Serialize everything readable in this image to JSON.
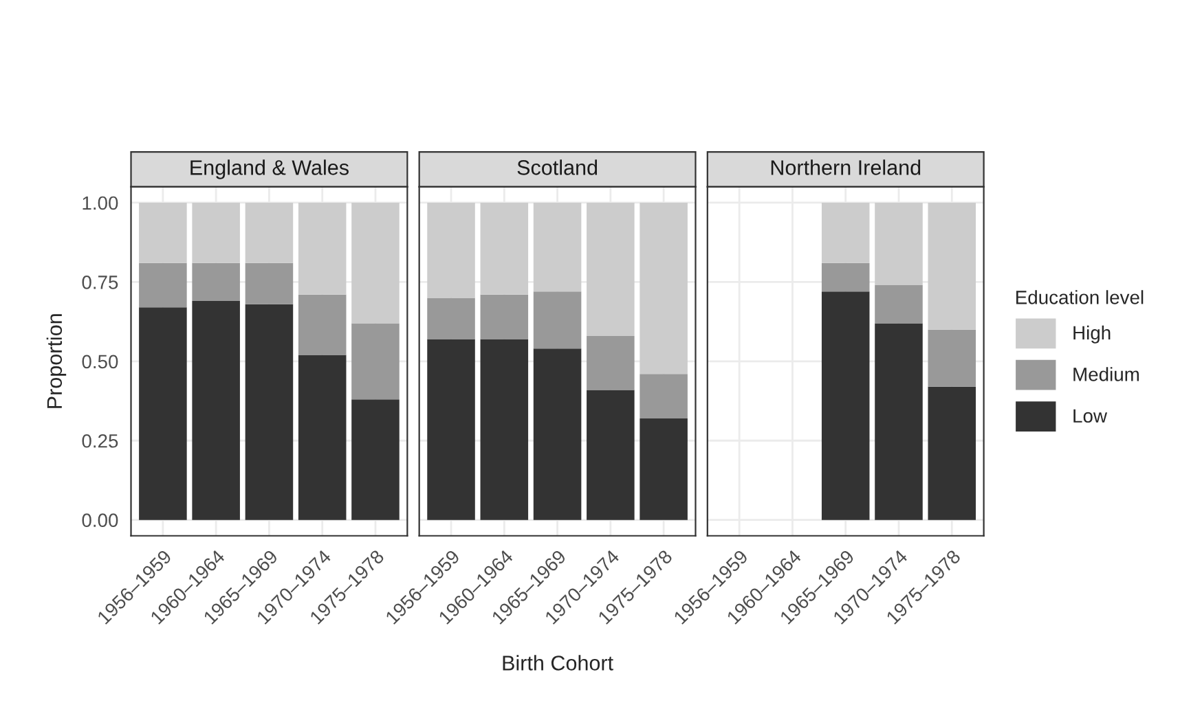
{
  "chart_data": [
    {
      "type": "bar",
      "title": "England & Wales",
      "ylabel": "Proportion",
      "stacked": true,
      "grid": true,
      "legend": false,
      "categories": [
        "1956–1959",
        "1960–1964",
        "1965–1969",
        "1970–1974",
        "1975–1978"
      ],
      "ylim": [
        -0.05,
        1.05
      ],
      "yticks": [
        {
          "value": 0,
          "label": "0.00"
        },
        {
          "value": 0.25,
          "label": "0.25"
        },
        {
          "value": 0.5,
          "label": "0.50"
        },
        {
          "value": 0.75,
          "label": "0.75"
        },
        {
          "value": 1,
          "label": "1.00"
        }
      ],
      "series": [
        {
          "color": "#333333",
          "values": [
            0.67,
            0.69,
            0.68,
            0.52,
            0.38
          ]
        },
        {
          "color": "#999999",
          "values": [
            0.14,
            0.12,
            0.13,
            0.19,
            0.24
          ]
        },
        {
          "color": "#cccccc",
          "values": [
            0.19,
            0.19,
            0.19,
            0.29,
            0.38
          ]
        }
      ]
    },
    {
      "type": "bar",
      "title": "Scotland",
      "xlabel": "Birth Cohort",
      "stacked": true,
      "grid": true,
      "legend": false,
      "tick_labels": "x",
      "categories": [
        "1956–1959",
        "1960–1964",
        "1965–1969",
        "1970–1974",
        "1975–1978"
      ],
      "ylim": [
        -0.05,
        1.05
      ],
      "yticks": [
        {
          "value": 0,
          "label": null
        },
        {
          "value": 0.25,
          "label": null
        },
        {
          "value": 0.5,
          "label": null
        },
        {
          "value": 0.75,
          "label": null
        },
        {
          "value": 1,
          "label": null
        }
      ],
      "series": [
        {
          "color": "#333333",
          "values": [
            0.57,
            0.57,
            0.54,
            0.41,
            0.32
          ]
        },
        {
          "color": "#999999",
          "values": [
            0.13,
            0.14,
            0.18,
            0.17,
            0.14
          ]
        },
        {
          "color": "#cccccc",
          "values": [
            0.3,
            0.29,
            0.28,
            0.42,
            0.54
          ]
        }
      ]
    },
    {
      "type": "bar",
      "title": "Northern Ireland",
      "legend_title": "Education level",
      "stacked": true,
      "grid": true,
      "legend": "right",
      "tick_labels": "x",
      "categories": [
        "1956–1959",
        "1960–1964",
        "1965–1969",
        "1970–1974",
        "1975–1978"
      ],
      "ylim": [
        -0.05,
        1.05
      ],
      "yticks": [
        {
          "value": 0,
          "label": null
        },
        {
          "value": 0.25,
          "label": null
        },
        {
          "value": 0.5,
          "label": null
        },
        {
          "value": 0.75,
          "label": null
        },
        {
          "value": 1,
          "label": null
        }
      ],
      "series": [
        {
          "name": "Low",
          "color": "#333333",
          "values": [
            null,
            null,
            0.72,
            0.62,
            0.42
          ]
        },
        {
          "name": "Medium",
          "color": "#999999",
          "values": [
            null,
            null,
            0.09,
            0.12,
            0.18
          ]
        },
        {
          "name": "High",
          "color": "#cccccc",
          "values": [
            null,
            null,
            0.19,
            0.26,
            0.4
          ]
        }
      ]
    }
  ]
}
